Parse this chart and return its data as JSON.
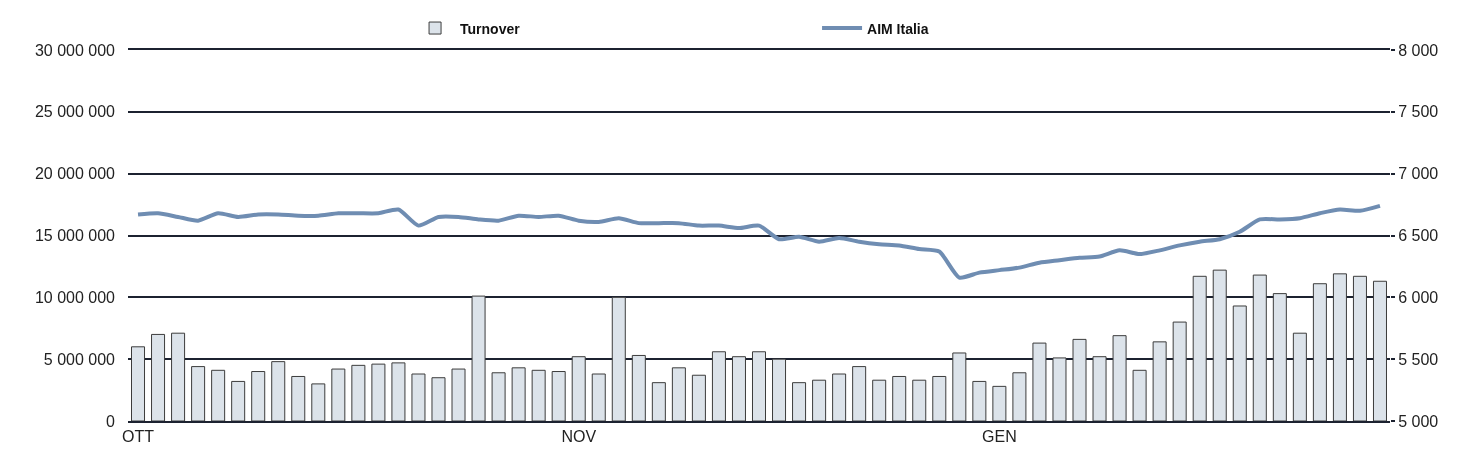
{
  "chart_data": {
    "type": "bar",
    "categories": [
      "OTT",
      null,
      null,
      null,
      null,
      null,
      null,
      null,
      null,
      null,
      null,
      null,
      null,
      null,
      null,
      null,
      null,
      null,
      null,
      null,
      null,
      null,
      "NOV",
      null,
      null,
      null,
      null,
      null,
      null,
      null,
      null,
      null,
      null,
      null,
      null,
      null,
      null,
      null,
      null,
      null,
      null,
      null,
      null,
      "GEN",
      null,
      null,
      null,
      null,
      null,
      null,
      null,
      null,
      null,
      null,
      null,
      null,
      null,
      null,
      null,
      null,
      null,
      null,
      null
    ],
    "series": [
      {
        "name": "Turnover",
        "color": "#dce3ea",
        "values": [
          6000000,
          7000000,
          7100000,
          4400000,
          4100000,
          3200000,
          4000000,
          4800000,
          3600000,
          3000000,
          4200000,
          4500000,
          4600000,
          4700000,
          3800000,
          3500000,
          4200000,
          10100000,
          3900000,
          4300000,
          4100000,
          4000000,
          5200000,
          3800000,
          10000000,
          5300000,
          3100000,
          4300000,
          3700000,
          5600000,
          5200000,
          5600000,
          5000000,
          3100000,
          3300000,
          3800000,
          4400000,
          3300000,
          3600000,
          3300000,
          3600000,
          5500000,
          3200000,
          2800000,
          3900000,
          6300000,
          5100000,
          6600000,
          5200000,
          6900000,
          4100000,
          6400000,
          8000000,
          11700000,
          12200000,
          9300000,
          11800000,
          10300000,
          7100000,
          11100000,
          11900000,
          11700000,
          11300000
        ]
      },
      {
        "name": "AIM Italia",
        "type": "line",
        "axis": "y2",
        "color": "#6f8db2",
        "values": [
          6670,
          6680,
          6650,
          6620,
          6680,
          6650,
          6670,
          6670,
          6660,
          6660,
          6680,
          6680,
          6680,
          6710,
          6580,
          6650,
          6650,
          6630,
          6620,
          6660,
          6650,
          6660,
          6620,
          6610,
          6640,
          6600,
          6600,
          6600,
          6580,
          6580,
          6560,
          6580,
          6470,
          6490,
          6450,
          6480,
          6450,
          6430,
          6420,
          6390,
          6370,
          6160,
          6200,
          6220,
          6240,
          6280,
          6300,
          6320,
          6330,
          6380,
          6350,
          6380,
          6420,
          6450,
          6470,
          6530,
          6630,
          6630,
          6640,
          6680,
          6710,
          6700,
          6740
        ]
      }
    ],
    "ylim": [
      0,
      30000000
    ],
    "yticks": [
      {
        "value": 0,
        "label": "0"
      },
      {
        "value": 5000000,
        "label": "5 000 000"
      },
      {
        "value": 10000000,
        "label": "10 000 000"
      },
      {
        "value": 15000000,
        "label": "15 000 000"
      },
      {
        "value": 20000000,
        "label": "20 000 000"
      },
      {
        "value": 25000000,
        "label": "25 000 000"
      },
      {
        "value": 30000000,
        "label": "30 000 000"
      }
    ],
    "y2lim": [
      5000,
      8000
    ],
    "y2ticks": [
      {
        "value": 5000,
        "label": "5 000"
      },
      {
        "value": 5500,
        "label": "5 500"
      },
      {
        "value": 6000,
        "label": "6 000"
      },
      {
        "value": 6500,
        "label": "6 500"
      },
      {
        "value": 7000,
        "label": "7 000"
      },
      {
        "value": 7500,
        "label": "7 500"
      },
      {
        "value": 8000,
        "label": "8 000"
      }
    ],
    "grid": "y",
    "legend": "top"
  }
}
